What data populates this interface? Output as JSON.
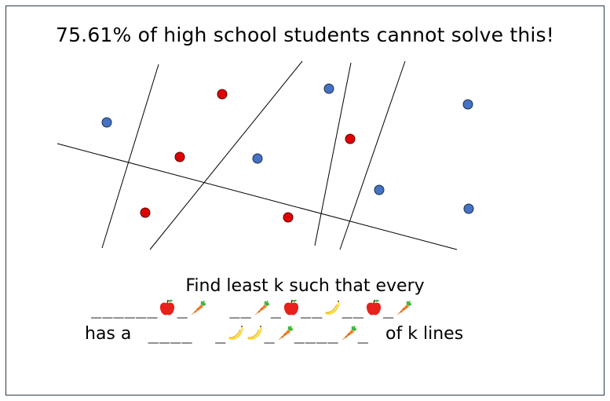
{
  "title": "75.61% of high school students cannot solve this!",
  "question": {
    "line1": "Find least k such that every",
    "line2": [
      {
        "t": "text",
        "v": "______"
      },
      {
        "t": "icon",
        "icon": "apple-icon"
      },
      {
        "t": "text",
        "v": "_"
      },
      {
        "t": "icon",
        "icon": "carrot-icon"
      },
      {
        "t": "text",
        "v": "  __"
      },
      {
        "t": "icon",
        "icon": "carrot-icon"
      },
      {
        "t": "text",
        "v": "_"
      },
      {
        "t": "icon",
        "icon": "apple-icon"
      },
      {
        "t": "text",
        "v": "__"
      },
      {
        "t": "icon",
        "icon": "banana-icon"
      },
      {
        "t": "text",
        "v": "__"
      },
      {
        "t": "icon",
        "icon": "apple-icon"
      },
      {
        "t": "text",
        "v": "_"
      },
      {
        "t": "icon",
        "icon": "carrot-icon"
      }
    ],
    "line3_prefix": "has a ",
    "line3": [
      {
        "t": "text",
        "v": " ____  _"
      },
      {
        "t": "icon",
        "icon": "banana-icon"
      },
      {
        "t": "icon",
        "icon": "banana-icon"
      },
      {
        "t": "text",
        "v": "_"
      },
      {
        "t": "icon",
        "icon": "carrot-icon"
      },
      {
        "t": "text",
        "v": "____"
      },
      {
        "t": "icon",
        "icon": "carrot-icon"
      },
      {
        "t": "text",
        "v": "_ "
      }
    ],
    "line3_suffix": " of k lines"
  },
  "colors": {
    "red_point": "#e00000",
    "blue_point": "#4472c4",
    "line": "#000000"
  }
}
